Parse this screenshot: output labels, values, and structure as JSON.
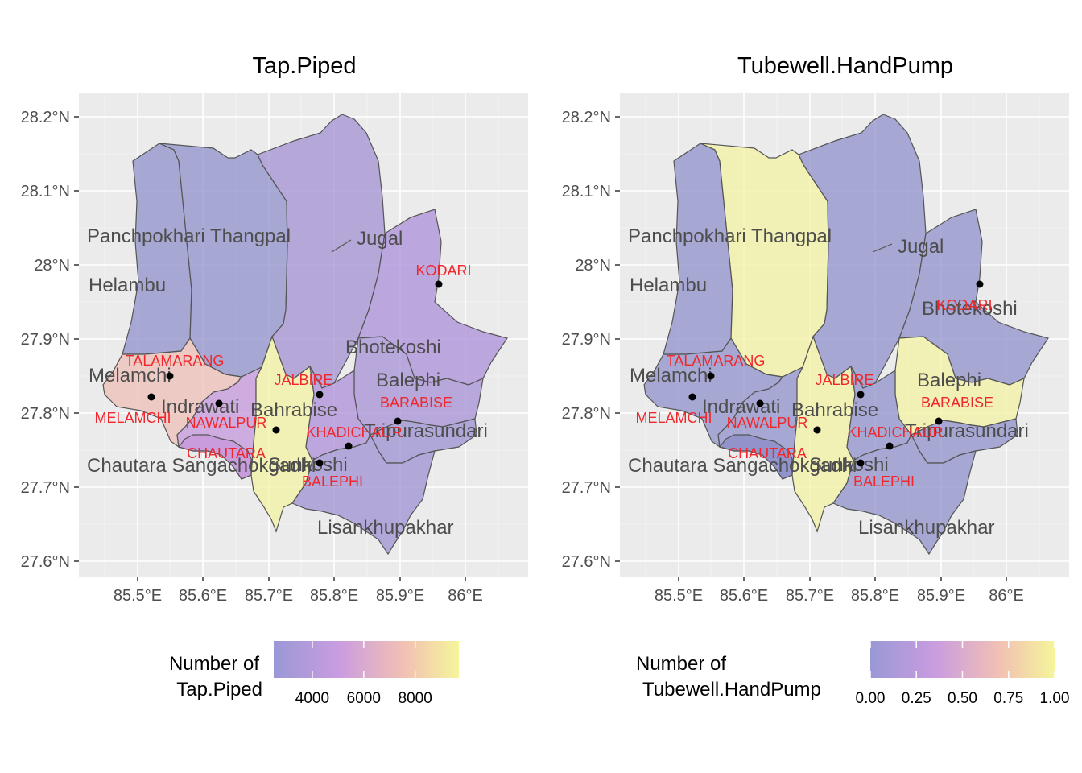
{
  "colors": {
    "panel": "#ebebeb",
    "town_label": "#f0282d",
    "district_label": "#4d4d4d",
    "border": "#555555",
    "scale_low": "#9a98d6",
    "scale_mid": "#c99ce0",
    "scale_high": "#f5f59a"
  },
  "axes": {
    "lat_ticks": [
      "28.2°N",
      "28.1°N",
      "28°N",
      "27.9°N",
      "27.8°N",
      "27.7°N",
      "27.6°N"
    ],
    "lon_ticks": [
      "85.5°E",
      "85.6°E",
      "85.7°E",
      "85.8°E",
      "85.9°E",
      "86°E"
    ]
  },
  "districts": [
    "Panchpokhari Thangpal",
    "Jugal",
    "Helambu",
    "Bhotekoshi",
    "Melamchi",
    "Balephi",
    "Indrawati",
    "Bahrabise",
    "Tripurasundari",
    "Chautara Sangachokgadhi",
    "Sunkoshi",
    "Lisankhupakhar"
  ],
  "towns": [
    "KODARI",
    "TALAMARANG",
    "JALBIRE",
    "BARABISE",
    "MELAMCHI",
    "NAWALPUR",
    "KHADICHAUR",
    "CHAUTARA",
    "BALEPHI"
  ],
  "panels": [
    {
      "title": "Tap.Piped",
      "legend_title_line1": "Number of",
      "legend_title_line2": "Tap.Piped",
      "legend_ticks": [
        "4000",
        "6000",
        "8000"
      ],
      "legend_range": [
        2500,
        9700
      ],
      "legend_tick_values": [
        4000,
        6000,
        8000
      ],
      "district_colors": {
        "helambu": "#8b8cc8",
        "panch": "#8b8cc8",
        "jugal": "#a08cd0",
        "bhote": "#a78ad8",
        "melamchi": "#efbdb4",
        "indrawati": "#c493db",
        "bahrabise": "#f3f3a0",
        "balephi": "#a48cd4",
        "sunkoshi": "#ab8ad8",
        "tripura": "#978cd0",
        "chautara": "#c696dc",
        "lisank": "#9a8cd0"
      }
    },
    {
      "title": "Tubewell.HandPump",
      "legend_title_line1": "Number of",
      "legend_title_line2": "Tubewell.HandPump",
      "legend_ticks": [
        "0.00",
        "0.25",
        "0.50",
        "0.75",
        "1.00"
      ],
      "legend_range": [
        0,
        1
      ],
      "legend_tick_values": [
        0,
        0.25,
        0.5,
        0.75,
        1
      ],
      "district_colors": {
        "helambu": "#8b8cc8",
        "panch": "#f3f3a0",
        "jugal": "#8b8cc8",
        "bhote": "#8b8cc8",
        "melamchi": "#8b8cc8",
        "indrawati": "#8b8cc8",
        "bahrabise": "#f3f3a0",
        "balephi": "#f3f3a0",
        "sunkoshi": "#8b8cc8",
        "tripura": "#8b8cc8",
        "chautara": "#8b8cc8",
        "lisank": "#8b8cc8"
      }
    }
  ]
}
